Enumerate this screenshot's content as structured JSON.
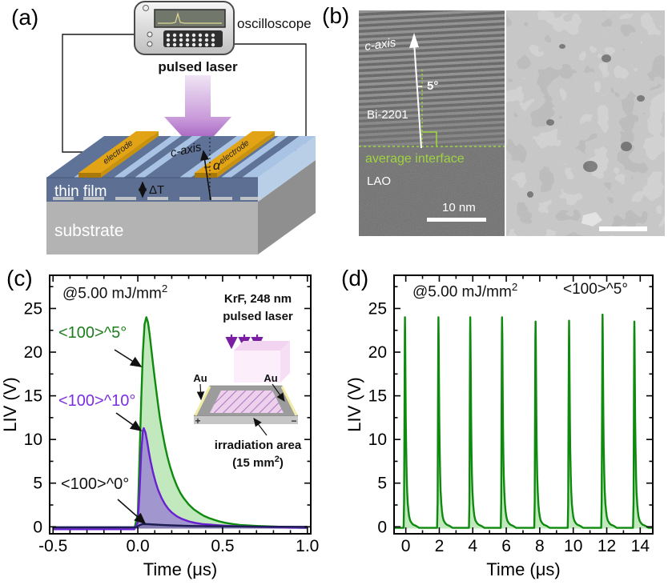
{
  "colors": {
    "green_curve": "#0e8a0e",
    "green_fill": "rgba(120,205,110,0.45)",
    "purple_curve": "#6a1fd0",
    "purple_fill": "rgba(140,100,215,0.62)",
    "dark_curve": "#1e1e55",
    "dark_fill": "rgba(80,80,130,0.35)",
    "green_label": "#1d7d1d",
    "purple_label": "#7b2fe0",
    "interface_green": "#9ed43f",
    "laser_purple": "#8a35ad",
    "electrode_gold": "#e2a414"
  },
  "panel_a": {
    "label": "(a)",
    "oscilloscope": "oscilloscope",
    "pulsed_laser": "pulsed laser",
    "electrode_left": "electrode",
    "electrode_right": "electrode",
    "c_axis": "c-axis",
    "alpha": "α",
    "delta_t": "ΔT",
    "thin_film": "thin film",
    "substrate": "substrate"
  },
  "panel_b": {
    "label": "(b)",
    "c_axis": "c-axis",
    "tilt_angle": "5°",
    "film": "Bi-2201",
    "interface": "average interface",
    "substrate": "LAO",
    "scale_bar": "10 nm"
  },
  "panel_c": {
    "label": "(c)",
    "fluence_base": "@5.00 mJ/mm",
    "fluence_sup": "2",
    "series_labels": {
      "s5": "<100>^5°",
      "s10": "<100>^10°",
      "s0": "<100>^0°"
    },
    "inset": {
      "laser_line1": "KrF, 248 nm",
      "laser_line2": "pulsed laser",
      "au_left": "Au",
      "au_right": "Au",
      "plus": "+",
      "minus": "−",
      "area_line1": "irradiation area",
      "area_line2_base": "(15 mm",
      "area_line2_sup": "2",
      "area_line2_end": ")"
    }
  },
  "panel_d": {
    "label": "(d)",
    "fluence_base": "@5.00 mJ/mm",
    "fluence_sup": "2",
    "orientation": "<100>^5°"
  },
  "chart_data": [
    {
      "id": "c",
      "type": "line",
      "title": "@5.00 mJ/mm2",
      "xlabel": "Time (μs)",
      "ylabel": "LIV (V)",
      "xlim": [
        -0.52,
        1.02
      ],
      "ylim": [
        -0.8,
        28.8
      ],
      "x_ticks": [
        -0.5,
        0.0,
        0.5,
        1.0
      ],
      "x_tick_labels": [
        "-0.5",
        "0.0",
        "0.5",
        "1.0"
      ],
      "x_minor_step": 0.1,
      "y_ticks": [
        0,
        5,
        10,
        15,
        20,
        25
      ],
      "y_tick_labels": [
        "0",
        "5",
        "10",
        "15",
        "20",
        "25"
      ],
      "y_minor_step": 2.5,
      "fill_base": -0.2,
      "series": [
        {
          "name": "<100>^5°",
          "color": "#0e8a0e",
          "fill": "rgba(120,205,110,0.45)",
          "peak_v": 24,
          "points": [
            [
              -0.5,
              -0.2
            ],
            [
              -0.1,
              -0.2
            ],
            [
              -0.02,
              -0.2
            ],
            [
              0,
              1.5
            ],
            [
              0.01,
              8
            ],
            [
              0.02,
              14.5
            ],
            [
              0.03,
              20
            ],
            [
              0.04,
              23.2
            ],
            [
              0.05,
              24
            ],
            [
              0.06,
              23.4
            ],
            [
              0.07,
              22
            ],
            [
              0.08,
              20.3
            ],
            [
              0.09,
              18.6
            ],
            [
              0.1,
              17
            ],
            [
              0.11,
              15.4
            ],
            [
              0.12,
              13.9
            ],
            [
              0.13,
              12.5
            ],
            [
              0.145,
              10.8
            ],
            [
              0.16,
              9.3
            ],
            [
              0.175,
              8
            ],
            [
              0.19,
              6.9
            ],
            [
              0.21,
              5.7
            ],
            [
              0.23,
              4.7
            ],
            [
              0.25,
              3.9
            ],
            [
              0.27,
              3.3
            ],
            [
              0.3,
              2.55
            ],
            [
              0.33,
              2
            ],
            [
              0.36,
              1.6
            ],
            [
              0.39,
              1.25
            ],
            [
              0.42,
              1
            ],
            [
              0.45,
              0.8
            ],
            [
              0.48,
              0.62
            ],
            [
              0.52,
              0.45
            ],
            [
              0.56,
              0.32
            ],
            [
              0.6,
              0.22
            ],
            [
              0.65,
              0.15
            ],
            [
              0.7,
              0.1
            ],
            [
              0.75,
              0.06
            ],
            [
              0.8,
              0.03
            ],
            [
              0.85,
              0
            ],
            [
              0.9,
              -0.05
            ],
            [
              0.95,
              -0.1
            ],
            [
              1,
              -0.12
            ]
          ]
        },
        {
          "name": "<100>^10°",
          "color": "#6a1fd0",
          "fill": "rgba(140,100,215,0.62)",
          "peak_v": 11.3,
          "points": [
            [
              -0.5,
              -0.28
            ],
            [
              -0.02,
              -0.28
            ],
            [
              0,
              0.5
            ],
            [
              0.01,
              4
            ],
            [
              0.02,
              8.5
            ],
            [
              0.03,
              11
            ],
            [
              0.035,
              11.3
            ],
            [
              0.045,
              10.8
            ],
            [
              0.055,
              9.8
            ],
            [
              0.065,
              8.6
            ],
            [
              0.075,
              7.5
            ],
            [
              0.09,
              6.2
            ],
            [
              0.105,
              5.1
            ],
            [
              0.12,
              4.2
            ],
            [
              0.14,
              3.3
            ],
            [
              0.16,
              2.6
            ],
            [
              0.18,
              2.05
            ],
            [
              0.2,
              1.65
            ],
            [
              0.23,
              1.2
            ],
            [
              0.26,
              0.9
            ],
            [
              0.3,
              0.62
            ],
            [
              0.34,
              0.45
            ],
            [
              0.38,
              0.32
            ],
            [
              0.42,
              0.25
            ],
            [
              0.47,
              0.18
            ],
            [
              0.52,
              0.12
            ],
            [
              0.6,
              0.05
            ],
            [
              0.7,
              0
            ],
            [
              0.8,
              -0.06
            ],
            [
              0.9,
              -0.1
            ],
            [
              1,
              -0.12
            ]
          ]
        },
        {
          "name": "<100>^0°",
          "color": "#1e1e55",
          "fill": "rgba(80,80,130,0.35)",
          "peak_v": 0.32,
          "points": [
            [
              -0.5,
              -0.05
            ],
            [
              -0.01,
              -0.05
            ],
            [
              0.01,
              0.18
            ],
            [
              0.03,
              0.32
            ],
            [
              0.06,
              0.3
            ],
            [
              0.1,
              0.25
            ],
            [
              0.15,
              0.2
            ],
            [
              0.2,
              0.16
            ],
            [
              0.3,
              0.1
            ],
            [
              0.4,
              0.07
            ],
            [
              0.5,
              0.05
            ],
            [
              0.7,
              0.02
            ],
            [
              1,
              0
            ]
          ]
        }
      ]
    },
    {
      "id": "d",
      "type": "line",
      "annotation_left": "@5.00 mJ/mm2",
      "annotation_right": "<100>^5°",
      "xlabel": "Time (μs)",
      "ylabel": "LIV (V)",
      "xlim": [
        -0.7,
        14.75
      ],
      "ylim": [
        -0.8,
        28.8
      ],
      "x_ticks": [
        0,
        2,
        4,
        6,
        8,
        10,
        12,
        14
      ],
      "x_tick_labels": [
        "0",
        "2",
        "4",
        "6",
        "8",
        "10",
        "12",
        "14"
      ],
      "x_minor_step": 1,
      "y_ticks": [
        0,
        5,
        10,
        15,
        20,
        25
      ],
      "y_tick_labels": [
        "0",
        "5",
        "10",
        "15",
        "20",
        "25"
      ],
      "y_minor_step": 2.5,
      "fill_base": -0.2,
      "baseline": -0.12,
      "series_color": "#0e8a0e",
      "series_fill": "rgba(120,205,110,0.45)",
      "pulses": {
        "times": [
          -0.1,
          1.9,
          3.8,
          5.7,
          7.7,
          9.7,
          11.7,
          13.6
        ],
        "peaks": [
          24,
          24,
          24,
          24,
          23.5,
          23.6,
          24.3,
          23.5
        ],
        "shape": [
          [
            -0.03,
            0
          ],
          [
            0,
            0.12
          ],
          [
            0.02,
            0.55
          ],
          [
            0.04,
            0.92
          ],
          [
            0.05,
            1
          ],
          [
            0.065,
            0.9
          ],
          [
            0.08,
            0.72
          ],
          [
            0.1,
            0.52
          ],
          [
            0.12,
            0.38
          ],
          [
            0.15,
            0.25
          ],
          [
            0.18,
            0.17
          ],
          [
            0.22,
            0.11
          ],
          [
            0.26,
            0.075
          ],
          [
            0.3,
            0.05
          ],
          [
            0.36,
            0.03
          ],
          [
            0.45,
            0.018
          ],
          [
            0.55,
            0.01
          ],
          [
            0.7,
            0.005
          ],
          [
            0.9,
            0
          ]
        ]
      }
    }
  ]
}
